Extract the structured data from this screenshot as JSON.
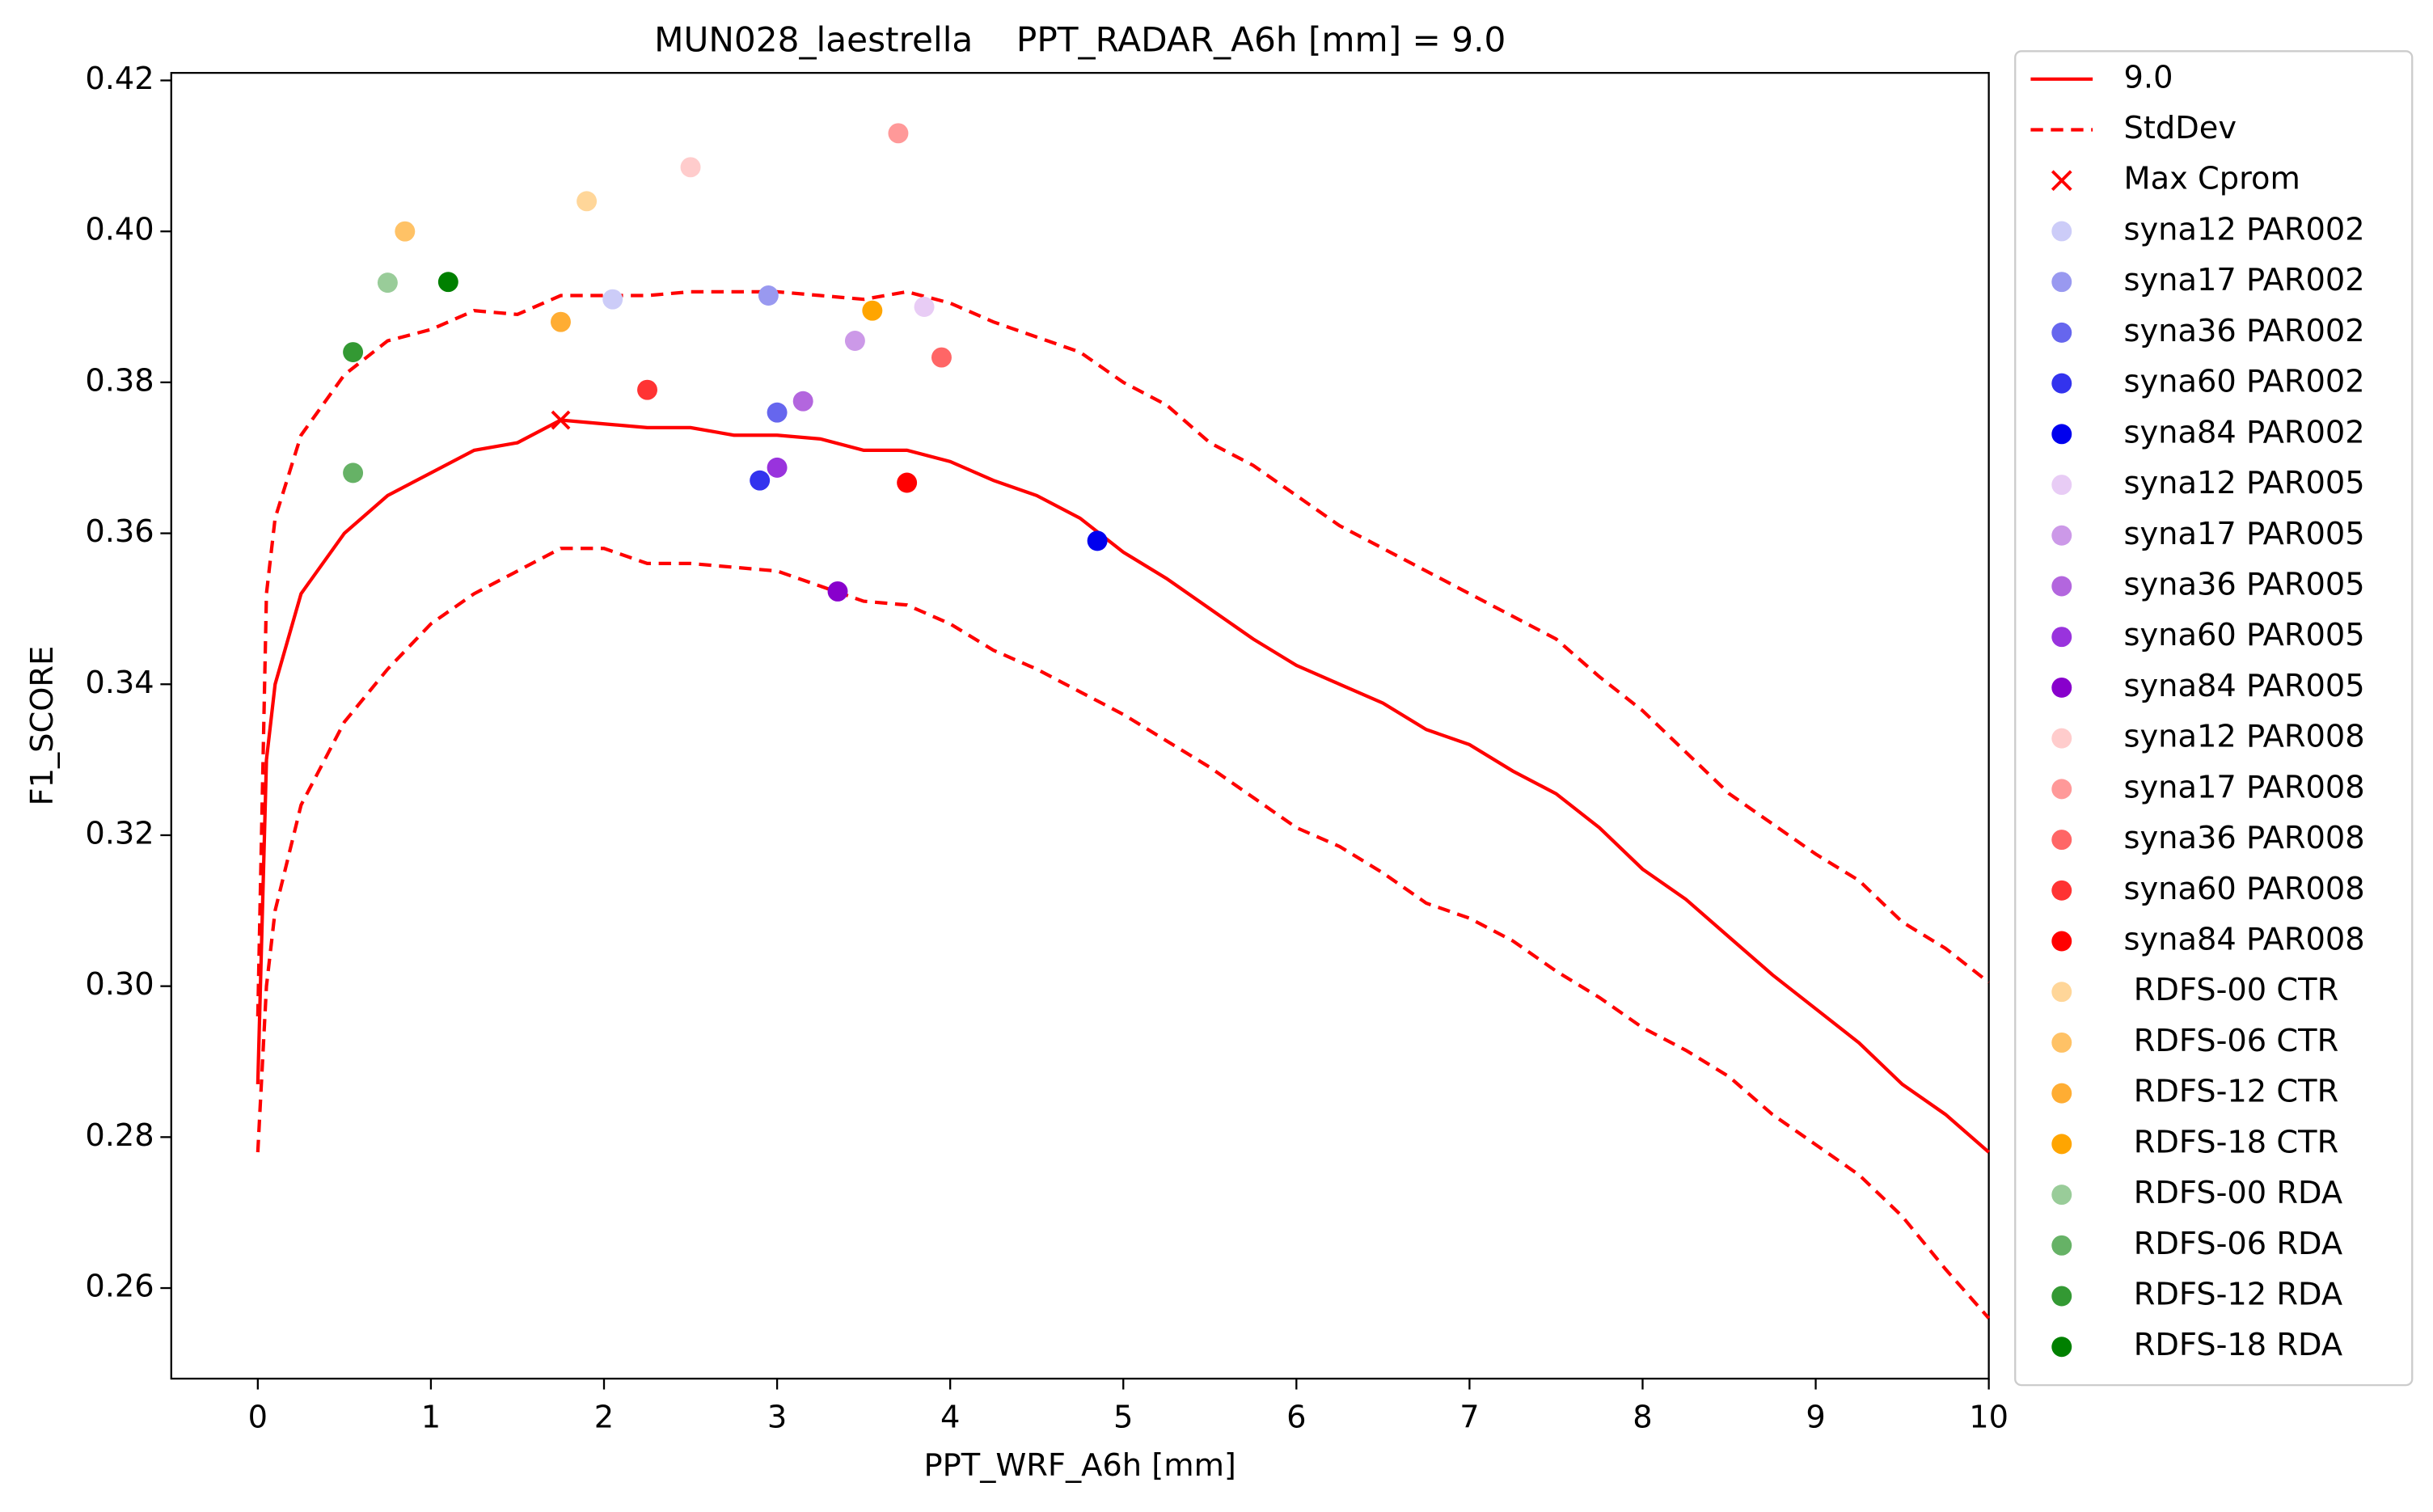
{
  "chart_data": {
    "type": "line",
    "title": "MUN028_laestrella    PPT_RADAR_A6h [mm] = 9.0",
    "xlabel": "PPT_WRF_A6h [mm]",
    "ylabel": "F1_SCORE",
    "xlim": [
      -0.5,
      10
    ],
    "ylim": [
      0.248,
      0.421
    ],
    "xticks": [
      0,
      1,
      2,
      3,
      4,
      5,
      6,
      7,
      8,
      9,
      10
    ],
    "yticks": [
      0.26,
      0.28,
      {
        "value": 0.3,
        "label": "0.30"
      },
      0.32,
      0.34,
      0.36,
      0.38,
      {
        "value": 0.4,
        "label": "0.40"
      },
      0.42
    ],
    "x": [
      0,
      0.05,
      0.1,
      0.25,
      0.5,
      0.75,
      1,
      1.25,
      1.5,
      1.75,
      2,
      2.25,
      2.5,
      2.75,
      3,
      3.25,
      3.5,
      3.75,
      4,
      4.25,
      4.5,
      4.75,
      5,
      5.25,
      5.5,
      5.75,
      6,
      6.25,
      6.5,
      6.75,
      7,
      7.25,
      7.5,
      7.75,
      8,
      8.25,
      8.5,
      8.75,
      9,
      9.25,
      9.5,
      9.75,
      10
    ],
    "series": [
      {
        "name": "9.0",
        "color": "#ff0000",
        "style": "solid",
        "values": [
          0.287,
          0.33,
          0.34,
          0.352,
          0.36,
          0.365,
          0.368,
          0.371,
          0.372,
          0.375,
          0.3745,
          0.374,
          0.374,
          0.373,
          0.373,
          0.3725,
          0.371,
          0.371,
          0.3695,
          0.367,
          0.365,
          0.362,
          0.3575,
          0.354,
          0.35,
          0.346,
          0.3425,
          0.34,
          0.3375,
          0.334,
          0.332,
          0.3285,
          0.3255,
          0.321,
          0.3155,
          0.3115,
          0.3065,
          0.3015,
          0.297,
          0.2925,
          0.287,
          0.283,
          0.278
        ]
      },
      {
        "name": "StdDev",
        "color": "#ff0000",
        "style": "dashed",
        "upper": [
          0.296,
          0.352,
          0.362,
          0.373,
          0.381,
          0.3855,
          0.387,
          0.3895,
          0.389,
          0.3915,
          0.3915,
          0.3915,
          0.392,
          0.392,
          0.392,
          0.3915,
          0.391,
          0.392,
          0.3905,
          0.388,
          0.386,
          0.384,
          0.38,
          0.377,
          0.372,
          0.369,
          0.365,
          0.361,
          0.358,
          0.355,
          0.352,
          0.349,
          0.346,
          0.341,
          0.3365,
          0.331,
          0.3255,
          0.3215,
          0.3175,
          0.314,
          0.3085,
          0.305,
          0.3005
        ],
        "lower": [
          0.278,
          0.3,
          0.31,
          0.324,
          0.335,
          0.342,
          0.348,
          0.352,
          0.355,
          0.358,
          0.358,
          0.356,
          0.356,
          0.3555,
          0.355,
          0.353,
          0.351,
          0.3505,
          0.348,
          0.3445,
          0.342,
          0.339,
          0.336,
          0.3325,
          0.329,
          0.325,
          0.321,
          0.3185,
          0.315,
          0.311,
          0.309,
          0.306,
          0.302,
          0.2985,
          0.2945,
          0.2915,
          0.288,
          0.283,
          0.279,
          0.275,
          0.2695,
          0.2625,
          0.256
        ]
      }
    ],
    "max": {
      "name": "Max Cprom",
      "color": "#ff0000",
      "x": 1.75,
      "y": 0.375
    },
    "points": [
      {
        "name": "syna12 PAR002",
        "color": "#ccccf8",
        "x": 2.05,
        "y": 0.391
      },
      {
        "name": "syna17 PAR002",
        "color": "#9999f0",
        "x": 2.95,
        "y": 0.3915
      },
      {
        "name": "syna36 PAR002",
        "color": "#6666ee",
        "x": 3.0,
        "y": 0.376
      },
      {
        "name": "syna60 PAR002",
        "color": "#3333ee",
        "x": 2.9,
        "y": 0.367
      },
      {
        "name": "syna84 PAR002",
        "color": "#0000ee",
        "x": 4.85,
        "y": 0.359
      },
      {
        "name": "syna12 PAR005",
        "color": "#e8ccf5",
        "x": 3.85,
        "y": 0.39
      },
      {
        "name": "syna17 PAR005",
        "color": "#cc99e8",
        "x": 3.45,
        "y": 0.3855
      },
      {
        "name": "syna36 PAR005",
        "color": "#b366de",
        "x": 3.15,
        "y": 0.3775
      },
      {
        "name": "syna60 PAR005",
        "color": "#9933dd",
        "x": 3.0,
        "y": 0.3687
      },
      {
        "name": "syna84 PAR005",
        "color": "#8800cc",
        "x": 3.35,
        "y": 0.3523
      },
      {
        "name": "syna12 PAR008",
        "color": "#ffcccc",
        "x": 2.5,
        "y": 0.4085
      },
      {
        "name": "syna17 PAR008",
        "color": "#ff9999",
        "x": 3.7,
        "y": 0.413
      },
      {
        "name": "syna36 PAR008",
        "color": "#ff6666",
        "x": 3.95,
        "y": 0.3833
      },
      {
        "name": "syna60 PAR008",
        "color": "#ff3333",
        "x": 2.25,
        "y": 0.379
      },
      {
        "name": "syna84 PAR008",
        "color": "#ff0000",
        "x": 3.75,
        "y": 0.3667
      },
      {
        "name": " RDFS-00 CTR",
        "color": "#ffd699",
        "x": 1.9,
        "y": 0.404
      },
      {
        "name": " RDFS-06 CTR",
        "color": "#ffc266",
        "x": 0.85,
        "y": 0.4
      },
      {
        "name": " RDFS-12 CTR",
        "color": "#ffad33",
        "x": 1.75,
        "y": 0.388
      },
      {
        "name": " RDFS-18 CTR",
        "color": "#ffa500",
        "x": 3.55,
        "y": 0.3895
      },
      {
        "name": " RDFS-00 RDA",
        "color": "#99cc99",
        "x": 0.75,
        "y": 0.3932
      },
      {
        "name": " RDFS-06 RDA",
        "color": "#66b266",
        "x": 0.55,
        "y": 0.368
      },
      {
        "name": " RDFS-12 RDA",
        "color": "#339933",
        "x": 0.55,
        "y": 0.384
      },
      {
        "name": " RDFS-18 RDA",
        "color": "#008000",
        "x": 1.1,
        "y": 0.3933
      }
    ],
    "legend": "outside right"
  }
}
